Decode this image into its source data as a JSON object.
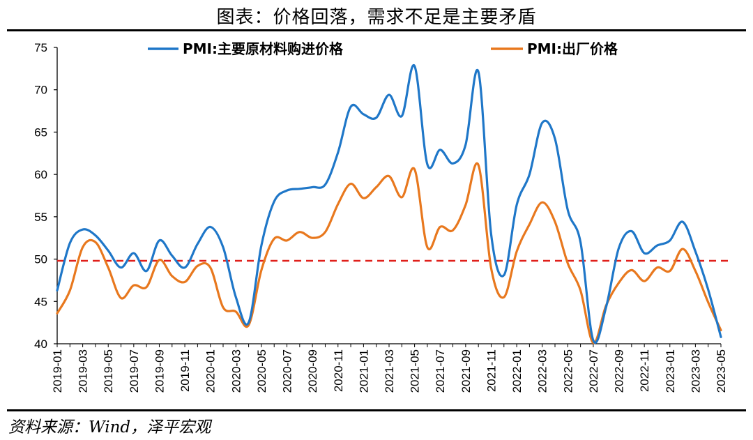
{
  "title": "图表：价格回落，需求不足是主要矛盾",
  "source": "资料来源：Wind，泽平宏观",
  "colors": {
    "series1": "#1f77c8",
    "series2": "#e8781e",
    "reference": "#e0201b",
    "axis": "#000000"
  },
  "chart_data": {
    "type": "line",
    "title": "图表：价格回落，需求不足是主要矛盾",
    "ylim": [
      40,
      75
    ],
    "yticks": [
      40,
      45,
      50,
      55,
      60,
      65,
      70,
      75
    ],
    "grid": false,
    "legend_position": "top",
    "reference_line": {
      "value": 49.8,
      "style": "dashed",
      "color": "#e0201b"
    },
    "x_labels_shown": [
      "2019-01",
      "2019-03",
      "2019-05",
      "2019-07",
      "2019-09",
      "2019-11",
      "2020-01",
      "2020-03",
      "2020-05",
      "2020-07",
      "2020-09",
      "2020-11",
      "2021-01",
      "2021-03",
      "2021-05",
      "2021-07",
      "2021-09",
      "2021-11",
      "2022-01",
      "2022-03",
      "2022-05",
      "2022-07",
      "2022-09",
      "2022-11",
      "2023-01",
      "2023-03",
      "2023-05"
    ],
    "x": [
      "2019-01",
      "2019-02",
      "2019-03",
      "2019-04",
      "2019-05",
      "2019-06",
      "2019-07",
      "2019-08",
      "2019-09",
      "2019-10",
      "2019-11",
      "2019-12",
      "2020-01",
      "2020-02",
      "2020-03",
      "2020-04",
      "2020-05",
      "2020-06",
      "2020-07",
      "2020-08",
      "2020-09",
      "2020-10",
      "2020-11",
      "2020-12",
      "2021-01",
      "2021-02",
      "2021-03",
      "2021-04",
      "2021-05",
      "2021-06",
      "2021-07",
      "2021-08",
      "2021-09",
      "2021-10",
      "2021-11",
      "2021-12",
      "2022-01",
      "2022-02",
      "2022-03",
      "2022-04",
      "2022-05",
      "2022-06",
      "2022-07",
      "2022-08",
      "2022-09",
      "2022-10",
      "2022-11",
      "2022-12",
      "2023-01",
      "2023-02",
      "2023-03",
      "2023-04",
      "2023-05"
    ],
    "series": [
      {
        "name": "PMI:主要原材料购进价格",
        "values": [
          46.3,
          51.9,
          53.5,
          52.8,
          51.0,
          49.0,
          50.7,
          48.6,
          52.2,
          50.4,
          49.0,
          51.8,
          53.8,
          51.4,
          45.5,
          42.5,
          51.6,
          56.8,
          58.1,
          58.3,
          58.5,
          58.8,
          62.6,
          68.0,
          67.1,
          66.7,
          69.4,
          66.9,
          72.8,
          61.2,
          62.9,
          61.3,
          63.5,
          72.1,
          52.9,
          48.1,
          56.4,
          60.0,
          66.1,
          64.2,
          55.8,
          52.0,
          40.4,
          44.3,
          51.3,
          53.3,
          50.7,
          51.6,
          52.2,
          54.4,
          50.9,
          46.4,
          40.8
        ]
      },
      {
        "name": "PMI:出厂价格",
        "values": [
          43.6,
          46.3,
          51.4,
          52.0,
          49.0,
          45.4,
          46.9,
          46.7,
          49.9,
          48.0,
          47.3,
          49.2,
          49.0,
          44.3,
          43.8,
          42.2,
          48.7,
          52.4,
          52.2,
          53.2,
          52.5,
          53.2,
          56.5,
          58.9,
          57.2,
          58.5,
          59.8,
          57.3,
          60.6,
          51.4,
          53.8,
          53.4,
          56.4,
          61.1,
          48.9,
          45.5,
          50.9,
          54.1,
          56.7,
          54.4,
          49.5,
          46.3,
          40.1,
          44.5,
          47.2,
          48.7,
          47.4,
          49.0,
          48.6,
          51.2,
          48.6,
          44.9,
          41.6
        ]
      }
    ]
  }
}
